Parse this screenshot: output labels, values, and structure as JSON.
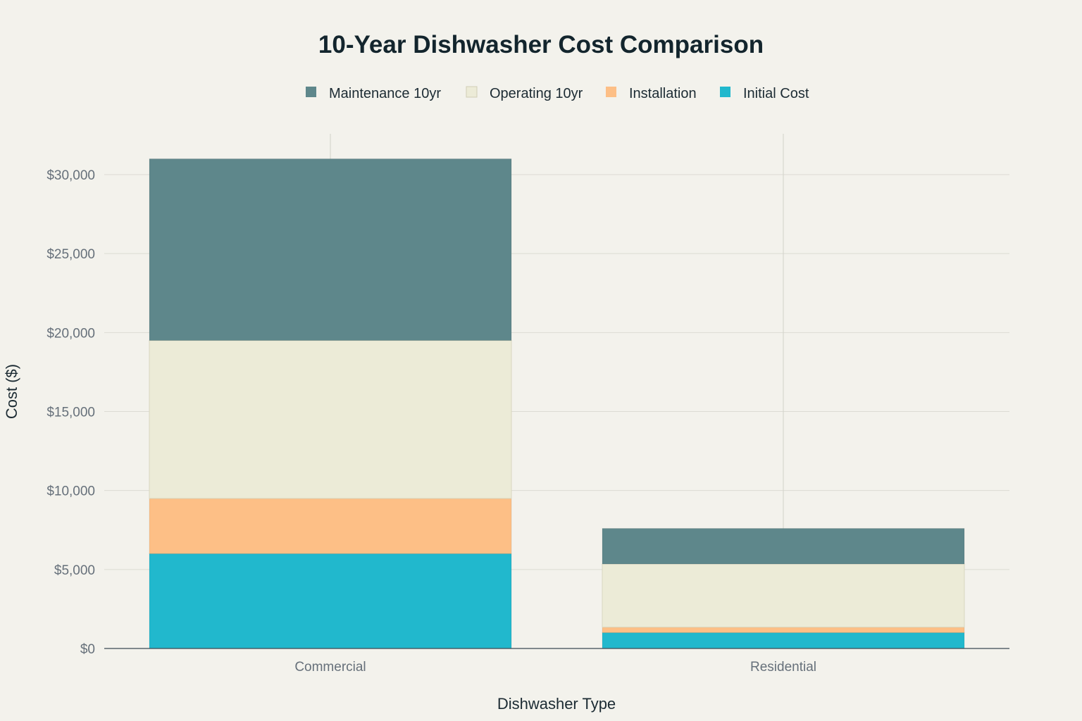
{
  "chart_data": {
    "type": "bar",
    "stacked": true,
    "title": "10-Year Dishwasher Cost Comparison",
    "xlabel": "Dishwasher Type",
    "ylabel": "Cost ($)",
    "categories": [
      "Commercial",
      "Residential"
    ],
    "ylim": [
      0,
      32000
    ],
    "yticks": [
      0,
      5000,
      10000,
      15000,
      20000,
      25000,
      30000
    ],
    "ytick_labels": [
      "$0",
      "$5,000",
      "$10,000",
      "$15,000",
      "$20,000",
      "$25,000",
      "$30,000"
    ],
    "grid": true,
    "legend_position": "top-center",
    "series": [
      {
        "name": "Initial Cost",
        "values": [
          6000,
          1000
        ],
        "color": "#21b8cd"
      },
      {
        "name": "Installation",
        "values": [
          3500,
          350
        ],
        "color": "#fdbf86"
      },
      {
        "name": "Operating 10yr",
        "values": [
          10000,
          4000
        ],
        "color": "#ecebd7"
      },
      {
        "name": "Maintenance 10yr",
        "values": [
          11500,
          2250
        ],
        "color": "#5e878b"
      }
    ],
    "legend_order": [
      "Maintenance 10yr",
      "Operating 10yr",
      "Installation",
      "Initial Cost"
    ]
  }
}
